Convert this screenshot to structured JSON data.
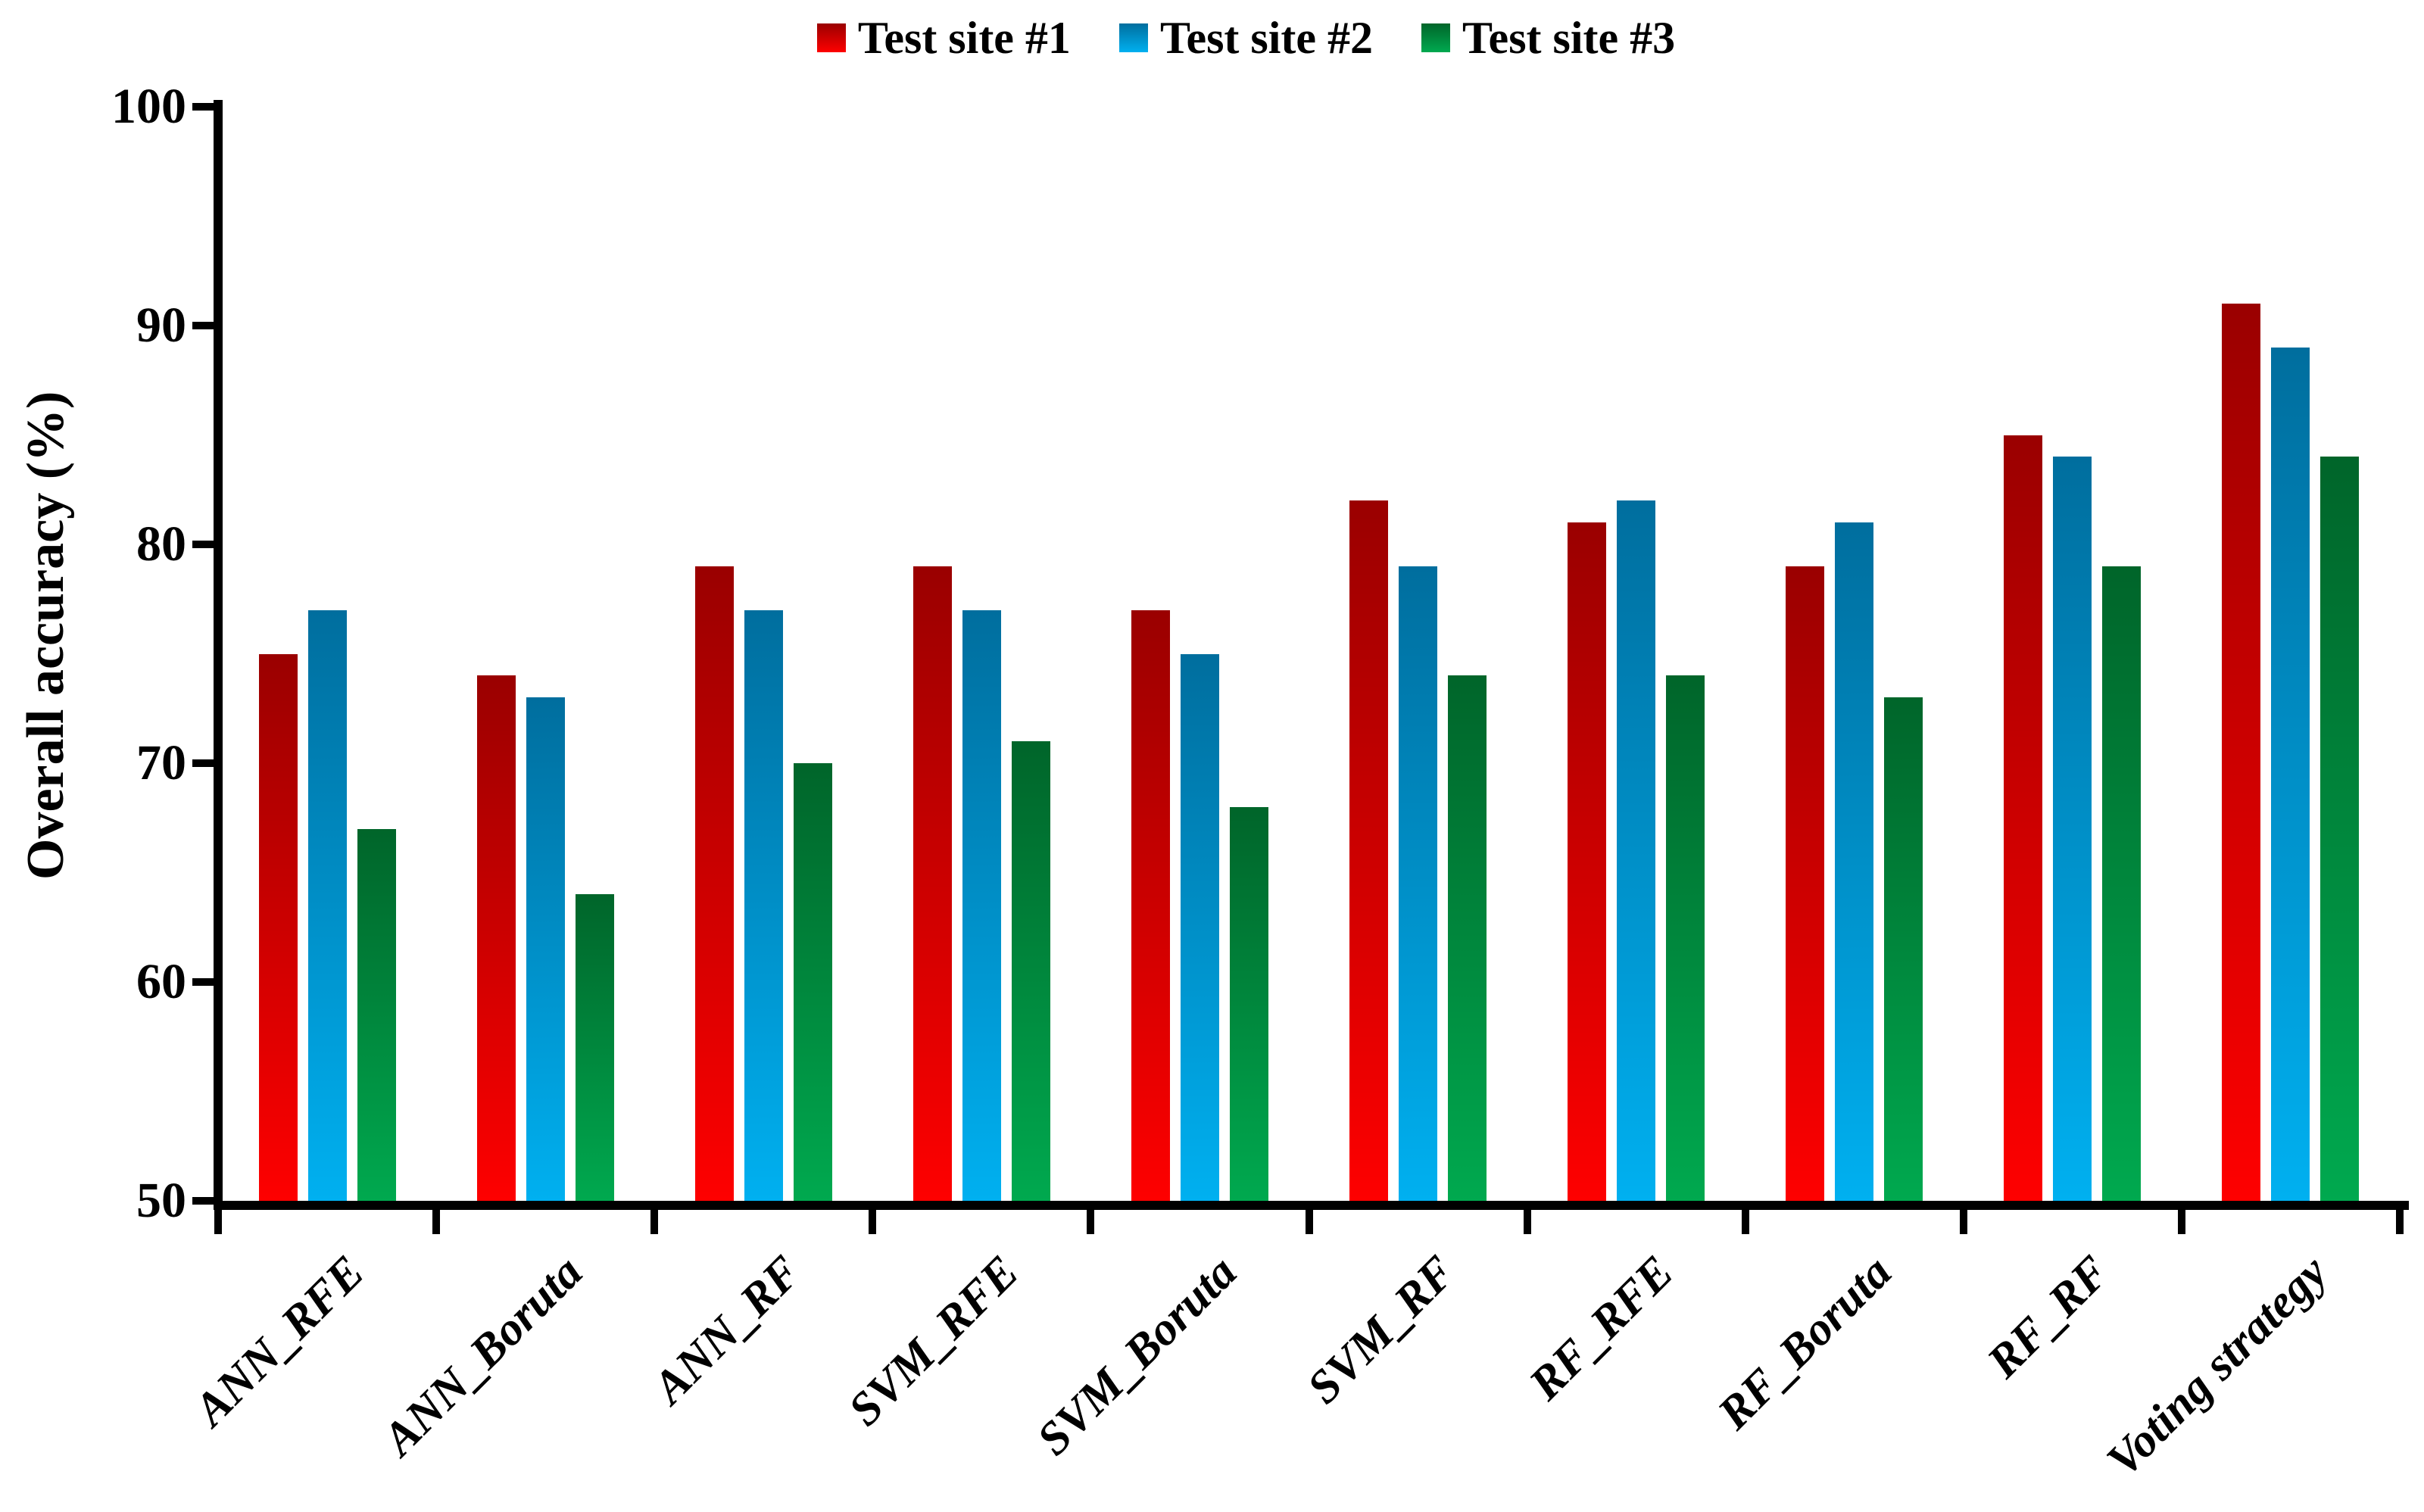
{
  "chart_data": {
    "type": "bar",
    "title": "",
    "xlabel": "",
    "ylabel": "Overall accuracy (%)",
    "ylim": [
      50,
      100
    ],
    "yticks": [
      50,
      60,
      70,
      80,
      90,
      100
    ],
    "grid": false,
    "legend_position": "top-center",
    "categories": [
      "ANN_RFE",
      "ANN_Boruta",
      "ANN_RF",
      "SVM_RFE",
      "SVM_Boruta",
      "SVM_RF",
      "RF_RFE",
      "RF_Boruta",
      "RF_RF",
      "Voting strategy"
    ],
    "series": [
      {
        "name": "Test site #1",
        "color_top": "#9A0000",
        "color_bottom": "#FE0000",
        "values": [
          75,
          74,
          79,
          79,
          77,
          82,
          81,
          79,
          85,
          91
        ]
      },
      {
        "name": "Test site #2",
        "color_top": "#006E9E",
        "color_bottom": "#00B0F0",
        "values": [
          77,
          73,
          77,
          77,
          75,
          79,
          82,
          81,
          84,
          89
        ]
      },
      {
        "name": "Test site #3",
        "color_top": "#00652A",
        "color_bottom": "#00A94F",
        "values": [
          67,
          64,
          70,
          71,
          68,
          74,
          74,
          73,
          79,
          84
        ]
      }
    ],
    "axis_color": "#000000"
  }
}
